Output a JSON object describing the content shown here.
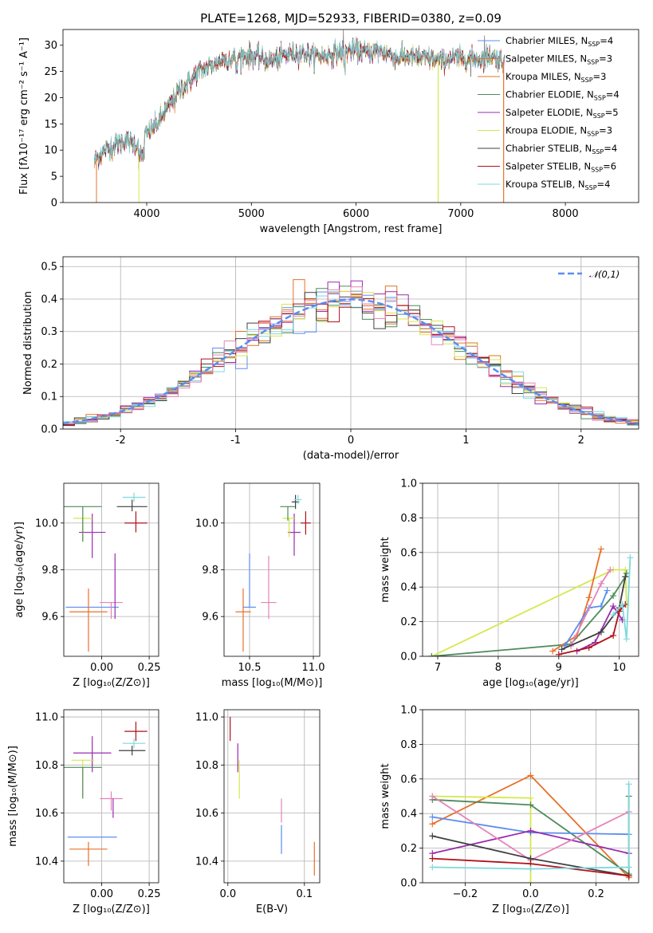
{
  "figure": {
    "title": "PLATE=1268, MJD=52933, FIBERID=0380, z=0.09"
  },
  "chart_data": [
    {
      "id": "spectrum",
      "type": "line",
      "xlabel": "wavelength [Angstrom, rest frame]",
      "ylabel": "Flux [fλ10⁻¹⁷ erg cm⁻² s⁻¹ A⁻¹]",
      "xlim": [
        3200,
        8700
      ],
      "ylim": [
        0,
        33
      ],
      "xticks": [
        4000,
        5000,
        6000,
        7000,
        8000
      ],
      "yticks": [
        0,
        5,
        10,
        15,
        20,
        25,
        30
      ],
      "grid": false,
      "legend_position": "top-right",
      "continuum": {
        "x": [
          3500,
          3600,
          3700,
          3800,
          3900,
          4000,
          4100,
          4200,
          4300,
          4400,
          4500,
          4600,
          4700,
          4800,
          4900,
          5000,
          5100,
          5200,
          5300,
          5400,
          5500,
          5600,
          5700,
          5800,
          5900,
          6000,
          6100,
          6200,
          6300,
          6400,
          6500,
          6600,
          6700,
          6800,
          6900,
          7000,
          7100,
          7200,
          7300,
          7400
        ],
        "y": [
          8,
          10,
          11,
          12,
          11,
          13,
          15,
          18,
          21,
          23,
          25,
          26,
          27,
          27.5,
          28,
          28,
          27.5,
          27,
          28,
          28.5,
          28.5,
          28,
          28,
          28.5,
          29,
          29,
          28.5,
          29,
          28.5,
          27.5,
          28,
          27.5,
          27.5,
          27,
          27.5,
          27.5,
          27.5,
          27.5,
          28,
          27
        ]
      },
      "series": [
        {
          "name": "Chabrier MILES, N_SSP=4",
          "label_main": "Chabrier MILES, N",
          "label_sub": "SSP",
          "label_tail": "=4",
          "color": "#5B8DEF"
        },
        {
          "name": "Salpeter MILES, N_SSP=3",
          "label_main": "Salpeter MILES, N",
          "label_sub": "SSP",
          "label_tail": "=3",
          "color": "#E8702A"
        },
        {
          "name": "Kroupa MILES, N_SSP=3",
          "label_main": "Kroupa MILES, N",
          "label_sub": "SSP",
          "label_tail": "=3",
          "color": "#D9771F"
        },
        {
          "name": "Chabrier ELODIE, N_SSP=4",
          "label_main": "Chabrier ELODIE, N",
          "label_sub": "SSP",
          "label_tail": "=4",
          "color": "#4E8A5A"
        },
        {
          "name": "Salpeter ELODIE, N_SSP=5",
          "label_main": "Salpeter ELODIE, N",
          "label_sub": "SSP",
          "label_tail": "=5",
          "color": "#9A2BB0"
        },
        {
          "name": "Kroupa ELODIE, N_SSP=3",
          "label_main": "Kroupa ELODIE, N",
          "label_sub": "SSP",
          "label_tail": "=3",
          "color": "#D6E84A"
        },
        {
          "name": "Chabrier STELIB, N_SSP=4",
          "label_main": "Chabrier STELIB, N",
          "label_sub": "SSP",
          "label_tail": "=4",
          "color": "#404040"
        },
        {
          "name": "Salpeter STELIB, N_SSP=6",
          "label_main": "Salpeter STELIB, N",
          "label_sub": "SSP",
          "label_tail": "=6",
          "color": "#B0101A"
        },
        {
          "name": "Kroupa STELIB, N_SSP=4",
          "label_main": "Kroupa STELIB, N",
          "label_sub": "SSP",
          "label_tail": "=4",
          "color": "#7ED8DE"
        }
      ]
    },
    {
      "id": "residuals",
      "type": "histogram",
      "xlabel": "(data-model)/error",
      "ylabel": "Normed distribution",
      "xlim": [
        -2.5,
        2.5
      ],
      "ylim": [
        0,
        0.53
      ],
      "xticks": [
        -2,
        -1,
        0,
        1,
        2
      ],
      "yticks": [
        0.0,
        0.1,
        0.2,
        0.3,
        0.4,
        0.5
      ],
      "grid": true,
      "legend_position": "top-right",
      "reference_curve": "N(0,1)",
      "legend_label": "𝒩(0,1)",
      "curve_color": "#5B8DEF",
      "bin_width": 0.1,
      "bin_start": -2.5,
      "series_colors": [
        "#5B8DEF",
        "#E8702A",
        "#D9771F",
        "#4E8A5A",
        "#9A2BB0",
        "#D6E84A",
        "#404040",
        "#B0101A",
        "#7ED8DE",
        "#E583B8"
      ]
    },
    {
      "id": "age_vs_Z",
      "type": "errorbar",
      "xlabel": "Z [log₁₀(Z/Z⊙)]",
      "ylabel": "age  [log₁₀(age/yr)]",
      "xlim": [
        -0.2,
        0.3
      ],
      "ylim": [
        9.43,
        10.17
      ],
      "xticks": [
        0.0,
        0.25
      ],
      "xticklabels": [
        "0.00",
        "0.25"
      ],
      "yticks": [
        9.6,
        9.8,
        10.0
      ],
      "yticklabels": [
        "9.6",
        "9.8",
        "10.0"
      ],
      "grid": true,
      "points": [
        {
          "x": -0.05,
          "y": 9.64,
          "xerr": 0.14,
          "yerr": [
            0,
            0
          ],
          "color": "#5B8DEF"
        },
        {
          "x": -0.07,
          "y": 9.62,
          "xerr": 0.1,
          "yerr": [
            0.17,
            0.1
          ],
          "color": "#E8702A"
        },
        {
          "x": 0.05,
          "y": 9.66,
          "xerr": 0.06,
          "yerr": [
            0.07,
            0.0
          ],
          "color": "#E583B8"
        },
        {
          "x": 0.07,
          "y": 9.72,
          "xerr": 0.0,
          "yerr": [
            0.13,
            0.15
          ],
          "color": "#9A2BB0"
        },
        {
          "x": -0.05,
          "y": 9.96,
          "xerr": 0.07,
          "yerr": [
            0.11,
            0.08
          ],
          "color": "#9A2BB0"
        },
        {
          "x": -0.1,
          "y": 10.02,
          "xerr": 0.05,
          "yerr": [
            0.1,
            0.0
          ],
          "color": "#D6E84A"
        },
        {
          "x": -0.1,
          "y": 10.07,
          "xerr": 0.1,
          "yerr": [
            0.15,
            0.0
          ],
          "color": "#4E8A5A"
        },
        {
          "x": 0.16,
          "y": 10.07,
          "xerr": 0.08,
          "yerr": [
            0.02,
            0.03
          ],
          "color": "#404040"
        },
        {
          "x": 0.17,
          "y": 10.11,
          "xerr": 0.06,
          "yerr": [
            0.02,
            0.02
          ],
          "color": "#7ED8DE"
        },
        {
          "x": 0.18,
          "y": 10.0,
          "xerr": 0.06,
          "yerr": [
            0.04,
            0.05
          ],
          "color": "#B0101A"
        }
      ]
    },
    {
      "id": "age_vs_mass",
      "type": "errorbar",
      "xlabel": "mass [log₁₀(M/M⊙)]",
      "ylabel": "",
      "xlim": [
        10.3,
        11.05
      ],
      "ylim": [
        9.43,
        10.17
      ],
      "xticks": [
        10.5,
        11.0
      ],
      "xticklabels": [
        "10.5",
        "11.0"
      ],
      "yticks": [
        9.6,
        9.8,
        10.0
      ],
      "yticklabels": [
        "9.6",
        "9.8",
        "10.0"
      ],
      "grid": true,
      "points": [
        {
          "x": 10.5,
          "y": 9.64,
          "xerr": 0.05,
          "yerr": [
            0,
            0.23
          ],
          "color": "#5B8DEF"
        },
        {
          "x": 10.45,
          "y": 9.62,
          "xerr": 0.06,
          "yerr": [
            0.17,
            0.1
          ],
          "color": "#E8702A"
        },
        {
          "x": 10.65,
          "y": 9.66,
          "xerr": 0.06,
          "yerr": [
            0.07,
            0.2
          ],
          "color": "#E583B8"
        },
        {
          "x": 10.85,
          "y": 9.96,
          "xerr": 0.05,
          "yerr": [
            0.1,
            0.08
          ],
          "color": "#9A2BB0"
        },
        {
          "x": 10.81,
          "y": 10.02,
          "xerr": 0.05,
          "yerr": [
            0.08,
            0.0
          ],
          "color": "#D6E84A"
        },
        {
          "x": 10.8,
          "y": 10.07,
          "xerr": 0.06,
          "yerr": [
            0.06,
            0.0
          ],
          "color": "#4E8A5A"
        },
        {
          "x": 10.86,
          "y": 10.09,
          "xerr": 0.03,
          "yerr": [
            0.03,
            0.03
          ],
          "color": "#404040"
        },
        {
          "x": 10.88,
          "y": 10.1,
          "xerr": 0.03,
          "yerr": [
            0.02,
            0.02
          ],
          "color": "#7ED8DE"
        },
        {
          "x": 10.94,
          "y": 10.0,
          "xerr": 0.04,
          "yerr": [
            0.05,
            0.05
          ],
          "color": "#B0101A"
        }
      ]
    },
    {
      "id": "mass_weight_vs_age",
      "type": "line",
      "xlabel": "age  [log₁₀(age/yr)]",
      "ylabel": "mass weight",
      "xlim": [
        6.75,
        10.32
      ],
      "ylim": [
        0.0,
        1.0
      ],
      "xticks": [
        7,
        8,
        9,
        10
      ],
      "yticks": [
        0.0,
        0.2,
        0.4,
        0.6,
        0.8,
        1.0
      ],
      "yticklabels": [
        "0.0",
        "0.2",
        "0.4",
        "0.6",
        "0.8",
        "1.0"
      ],
      "grid": true,
      "series": [
        {
          "color": "#D6E84A",
          "x": [
            6.9,
            9.9,
            10.1,
            10.12
          ],
          "y": [
            0.0,
            0.5,
            0.5,
            0.3
          ]
        },
        {
          "color": "#4E8A5A",
          "x": [
            6.9,
            9.2,
            9.9,
            10.1,
            10.12
          ],
          "y": [
            0.0,
            0.07,
            0.35,
            0.46,
            0.48
          ]
        },
        {
          "color": "#E8702A",
          "x": [
            8.9,
            9.3,
            9.5,
            9.7
          ],
          "y": [
            0.03,
            0.12,
            0.34,
            0.62
          ]
        },
        {
          "color": "#5B8DEF",
          "x": [
            9.1,
            9.5,
            9.7,
            9.8
          ],
          "y": [
            0.06,
            0.28,
            0.29,
            0.38
          ]
        },
        {
          "color": "#E583B8",
          "x": [
            9.2,
            9.7,
            9.85
          ],
          "y": [
            0.06,
            0.42,
            0.5
          ]
        },
        {
          "color": "#9A2BB0",
          "x": [
            9.3,
            9.6,
            9.9,
            10.05
          ],
          "y": [
            0.03,
            0.08,
            0.29,
            0.21
          ]
        },
        {
          "color": "#404040",
          "x": [
            9.05,
            9.7,
            10.0,
            10.1
          ],
          "y": [
            0.04,
            0.14,
            0.28,
            0.46
          ]
        },
        {
          "color": "#B0101A",
          "x": [
            9.0,
            9.5,
            9.9,
            10.0,
            10.1
          ],
          "y": [
            0.01,
            0.05,
            0.12,
            0.26,
            0.3
          ]
        },
        {
          "color": "#7ED8DE",
          "x": [
            9.9,
            10.05,
            10.12,
            10.18
          ],
          "y": [
            0.24,
            0.3,
            0.1,
            0.57
          ]
        }
      ]
    },
    {
      "id": "mass_vs_Z",
      "type": "errorbar",
      "xlabel": "Z [log₁₀(Z/Z⊙)]",
      "ylabel": "mass [log₁₀(M/M⊙)]",
      "xlim": [
        -0.2,
        0.3
      ],
      "ylim": [
        10.31,
        11.03
      ],
      "xticks": [
        0.0,
        0.25
      ],
      "xticklabels": [
        "0.00",
        "0.25"
      ],
      "yticks": [
        10.4,
        10.6,
        10.8,
        11.0
      ],
      "yticklabels": [
        "10.4",
        "10.6",
        "10.8",
        "11.0"
      ],
      "grid": true,
      "points": [
        {
          "x": -0.05,
          "y": 10.5,
          "xerr": 0.13,
          "yerr": [
            0,
            0
          ],
          "color": "#5B8DEF"
        },
        {
          "x": -0.07,
          "y": 10.45,
          "xerr": 0.1,
          "yerr": [
            0.07,
            0.03
          ],
          "color": "#E8702A"
        },
        {
          "x": 0.05,
          "y": 10.66,
          "xerr": 0.06,
          "yerr": [
            0.05,
            0.03
          ],
          "color": "#E583B8"
        },
        {
          "x": -0.05,
          "y": 10.85,
          "xerr": 0.1,
          "yerr": [
            0.08,
            0.07
          ],
          "color": "#9A2BB0"
        },
        {
          "x": -0.1,
          "y": 10.82,
          "xerr": 0.06,
          "yerr": [
            0.15,
            0.0
          ],
          "color": "#D6E84A"
        },
        {
          "x": -0.1,
          "y": 10.79,
          "xerr": 0.1,
          "yerr": [
            0.13,
            0.0
          ],
          "color": "#4E8A5A"
        },
        {
          "x": 0.06,
          "y": 10.66,
          "xerr": 0.0,
          "yerr": [
            0.08,
            0.0
          ],
          "color": "#9A2BB0"
        },
        {
          "x": 0.16,
          "y": 10.86,
          "xerr": 0.07,
          "yerr": [
            0.02,
            0.02
          ],
          "color": "#404040"
        },
        {
          "x": 0.17,
          "y": 10.89,
          "xerr": 0.06,
          "yerr": [
            0.02,
            0.02
          ],
          "color": "#7ED8DE"
        },
        {
          "x": 0.18,
          "y": 10.94,
          "xerr": 0.06,
          "yerr": [
            0.04,
            0.04
          ],
          "color": "#B0101A"
        }
      ]
    },
    {
      "id": "mass_vs_EBV",
      "type": "errorbar",
      "xlabel": "E(B-V)",
      "ylabel": "",
      "xlim": [
        -0.005,
        0.12
      ],
      "ylim": [
        10.31,
        11.03
      ],
      "xticks": [
        0.0,
        0.1
      ],
      "xticklabels": [
        "0.0",
        "0.1"
      ],
      "yticks": [
        10.4,
        10.6,
        10.8,
        11.0
      ],
      "yticklabels": [
        "10.4",
        "10.6",
        "10.8",
        "11.0"
      ],
      "grid": true,
      "points": [
        {
          "x": 0.003,
          "y": 10.95,
          "xerr": 0,
          "yerr": [
            0.05,
            0.05
          ],
          "color": "#B0101A"
        },
        {
          "x": 0.013,
          "y": 10.83,
          "xerr": 0,
          "yerr": [
            0.06,
            0.06
          ],
          "color": "#9A2BB0"
        },
        {
          "x": 0.015,
          "y": 10.74,
          "xerr": 0,
          "yerr": [
            0.08,
            0.08
          ],
          "color": "#D6E84A"
        },
        {
          "x": 0.07,
          "y": 10.61,
          "xerr": 0,
          "yerr": [
            0.05,
            0.05
          ],
          "color": "#E583B8"
        },
        {
          "x": 0.07,
          "y": 10.5,
          "xerr": 0,
          "yerr": [
            0.07,
            0.05
          ],
          "color": "#5B8DEF"
        },
        {
          "x": 0.113,
          "y": 10.4,
          "xerr": 0,
          "yerr": [
            0.06,
            0.08
          ],
          "color": "#E8702A"
        }
      ]
    },
    {
      "id": "mass_weight_vs_Z",
      "type": "line",
      "xlabel": "Z [log₁₀(Z/Z⊙)]",
      "ylabel": "mass weight",
      "xlim": [
        -0.33,
        0.33
      ],
      "ylim": [
        0.0,
        1.0
      ],
      "xticks": [
        -0.2,
        0.0,
        0.2
      ],
      "xticklabels": [
        "−0.2",
        "0.0",
        "0.2"
      ],
      "yticks": [
        0.0,
        0.2,
        0.4,
        0.6,
        0.8,
        1.0
      ],
      "yticklabels": [
        "0.0",
        "0.2",
        "0.4",
        "0.6",
        "0.8",
        "1.0"
      ],
      "grid": true,
      "series": [
        {
          "color": "#E8702A",
          "x": [
            -0.3,
            0.0,
            0.3
          ],
          "y": [
            0.34,
            0.62,
            0.03
          ]
        },
        {
          "color": "#D6E84A",
          "x": [
            -0.3,
            0.0,
            0.0
          ],
          "y": [
            0.5,
            0.49,
            0.0
          ]
        },
        {
          "color": "#4E8A5A",
          "x": [
            -0.3,
            0.0,
            0.3,
            0.3
          ],
          "y": [
            0.48,
            0.45,
            0.05,
            0.5
          ]
        },
        {
          "color": "#5B8DEF",
          "x": [
            -0.3,
            0.0,
            0.3
          ],
          "y": [
            0.38,
            0.29,
            0.28
          ]
        },
        {
          "color": "#9A2BB0",
          "x": [
            -0.3,
            0.0,
            0.3
          ],
          "y": [
            0.17,
            0.3,
            0.17
          ]
        },
        {
          "color": "#E583B8",
          "x": [
            -0.3,
            0.0,
            0.3
          ],
          "y": [
            0.5,
            0.13,
            0.41
          ]
        },
        {
          "color": "#404040",
          "x": [
            -0.3,
            0.0,
            0.3
          ],
          "y": [
            0.27,
            0.14,
            0.04
          ]
        },
        {
          "color": "#B0101A",
          "x": [
            -0.3,
            0.0,
            0.3
          ],
          "y": [
            0.14,
            0.11,
            0.04
          ]
        },
        {
          "color": "#7ED8DE",
          "x": [
            -0.3,
            0.0,
            0.3,
            0.3
          ],
          "y": [
            0.09,
            0.08,
            0.09,
            0.57
          ]
        }
      ]
    }
  ]
}
